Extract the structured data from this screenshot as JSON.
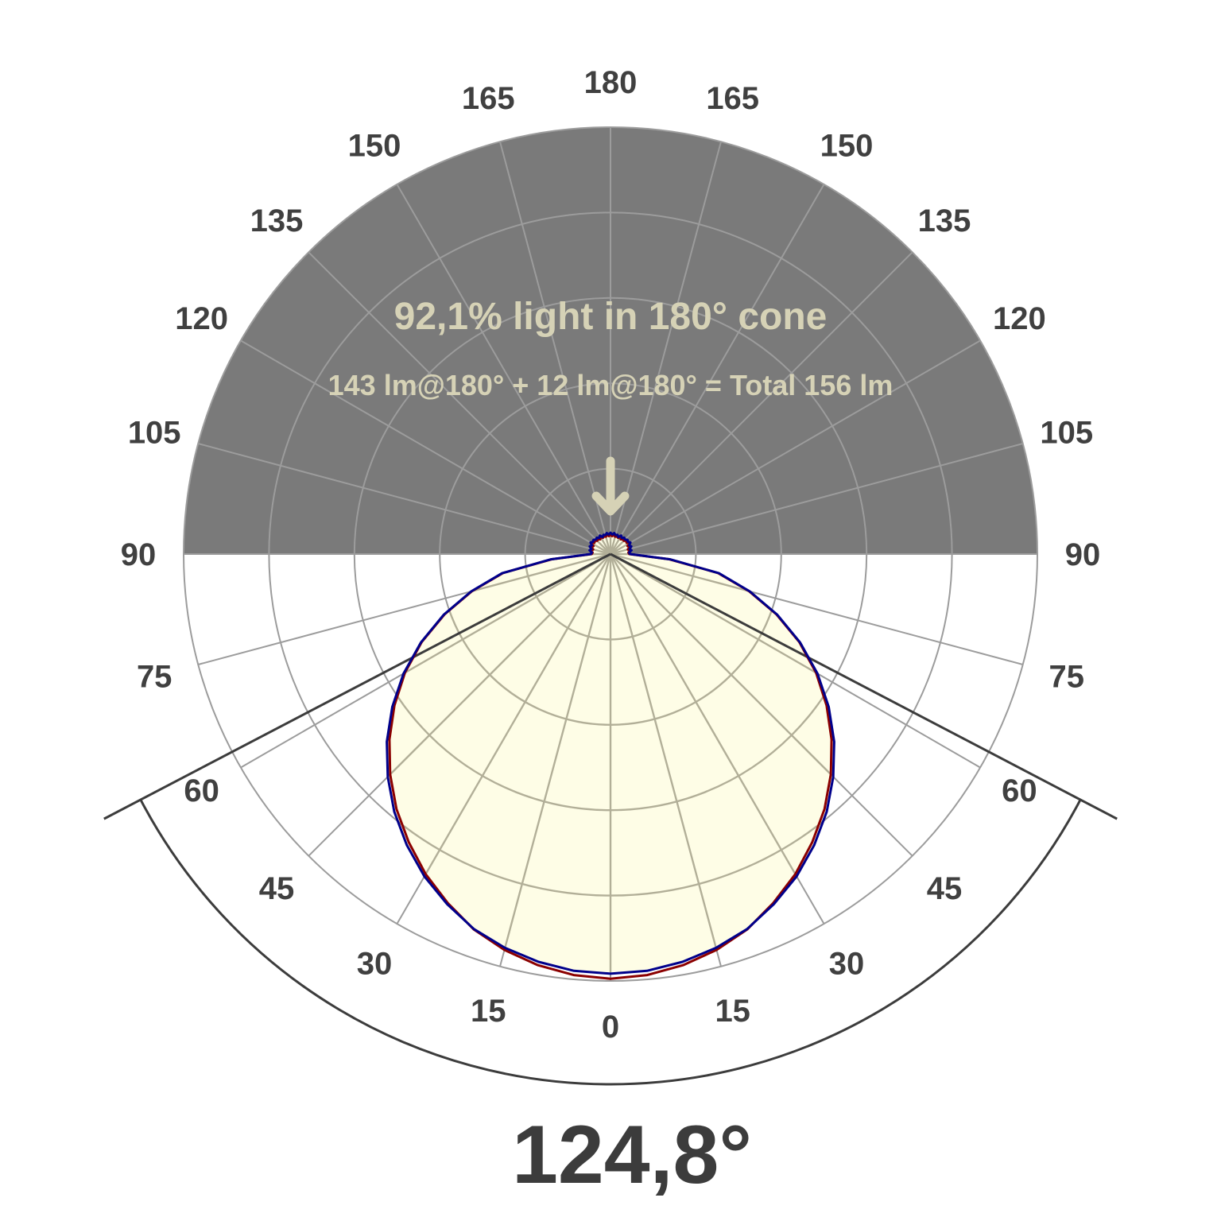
{
  "chart_data": {
    "type": "polar",
    "title": "92,1% light in 180° cone",
    "subtitle": "143 lm@180° + 12 lm@180° = Total 156 lm",
    "beam_angle_label": "124,8°",
    "beam_angle_deg": 124.8,
    "angle_tick_labels": [
      "0",
      "15",
      "30",
      "45",
      "60",
      "75",
      "90",
      "105",
      "120",
      "135",
      "150",
      "165",
      "180"
    ],
    "angle_step_deg": 15,
    "radial_rings": 5,
    "rlim": [
      0,
      1
    ],
    "grid": true,
    "angles": [
      0,
      5,
      10,
      15,
      20,
      25,
      30,
      35,
      40,
      45,
      50,
      55,
      60,
      65,
      70,
      75,
      80,
      85,
      90,
      95,
      100,
      105,
      110,
      115,
      120,
      125,
      130,
      135,
      140,
      145,
      150,
      155,
      160,
      165,
      170,
      175,
      180
    ],
    "series": [
      {
        "color": "#00008b",
        "values": [
          0.983,
          0.98,
          0.97,
          0.955,
          0.935,
          0.905,
          0.872,
          0.832,
          0.788,
          0.738,
          0.684,
          0.624,
          0.56,
          0.49,
          0.416,
          0.338,
          0.258,
          0.14,
          0.046,
          0.044,
          0.05,
          0.046,
          0.052,
          0.048,
          0.054,
          0.05,
          0.052,
          0.048,
          0.05,
          0.046,
          0.05,
          0.044,
          0.048,
          0.046,
          0.05,
          0.046,
          0.05
        ]
      },
      {
        "color": "#8b0000",
        "values": [
          0.995,
          0.99,
          0.978,
          0.96,
          0.936,
          0.902,
          0.866,
          0.824,
          0.78,
          0.73,
          0.676,
          0.618,
          0.556,
          0.488,
          0.414,
          0.336,
          0.256,
          0.138,
          0.044,
          0.042,
          0.046,
          0.042,
          0.048,
          0.044,
          0.05,
          0.046,
          0.048,
          0.044,
          0.046,
          0.042,
          0.046,
          0.042,
          0.044,
          0.042,
          0.046,
          0.042,
          0.046
        ]
      }
    ],
    "colors": {
      "upper_half": "#7a7a7a",
      "fill": "#fefde6",
      "beam_lines": "#3c3c3c",
      "text_light": "#d6d2b6"
    }
  }
}
